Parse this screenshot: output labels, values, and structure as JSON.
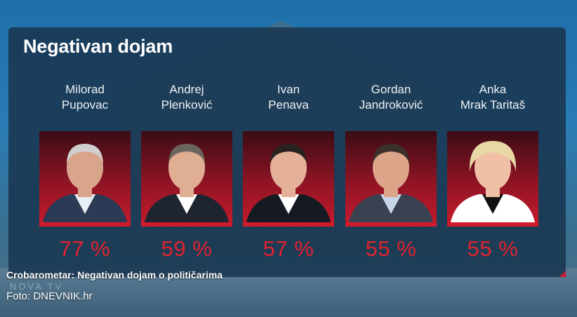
{
  "title": "Negativan dojam",
  "caption": "Crobarometar: Negativan dojam o političarima",
  "watermark": "NOVA TV",
  "credit": "Foto: DNEVNIK.hr",
  "accent_color": "#e1222f",
  "people": [
    {
      "line1": "Milorad",
      "line2": "Pupovac",
      "value_label": "77 %",
      "hair": "#cfcfcf",
      "skin": "#d8a58b",
      "suit": "#2b3a55",
      "shirt": "#e8eef5"
    },
    {
      "line1": "Andrej",
      "line2": "Plenković",
      "value_label": "59 %",
      "hair": "#6b6560",
      "skin": "#e0ae92",
      "suit": "#1e2530",
      "shirt": "#ffffff"
    },
    {
      "line1": "Ivan",
      "line2": "Penava",
      "value_label": "57 %",
      "hair": "#2a2220",
      "skin": "#e4b198",
      "suit": "#151a22",
      "shirt": "#ffffff"
    },
    {
      "line1": "Gordan",
      "line2": "Jandroković",
      "value_label": "55 %",
      "hair": "#3b302a",
      "skin": "#dca58a",
      "suit": "#3a4150",
      "shirt": "#c8d6ea"
    },
    {
      "line1": "Anka",
      "line2": "Mrak Taritaš",
      "value_label": "55 %",
      "hair": "#e8d8a6",
      "skin": "#efbfa6",
      "suit": "#ffffff",
      "shirt": "#111111"
    }
  ],
  "chart_data": {
    "type": "bar",
    "title": "Negativan dojam",
    "categories": [
      "Milorad Pupovac",
      "Andrej Plenković",
      "Ivan Penava",
      "Gordan Jandroković",
      "Anka Mrak Taritaš"
    ],
    "values": [
      77,
      59,
      57,
      55,
      55
    ],
    "unit": "%"
  }
}
